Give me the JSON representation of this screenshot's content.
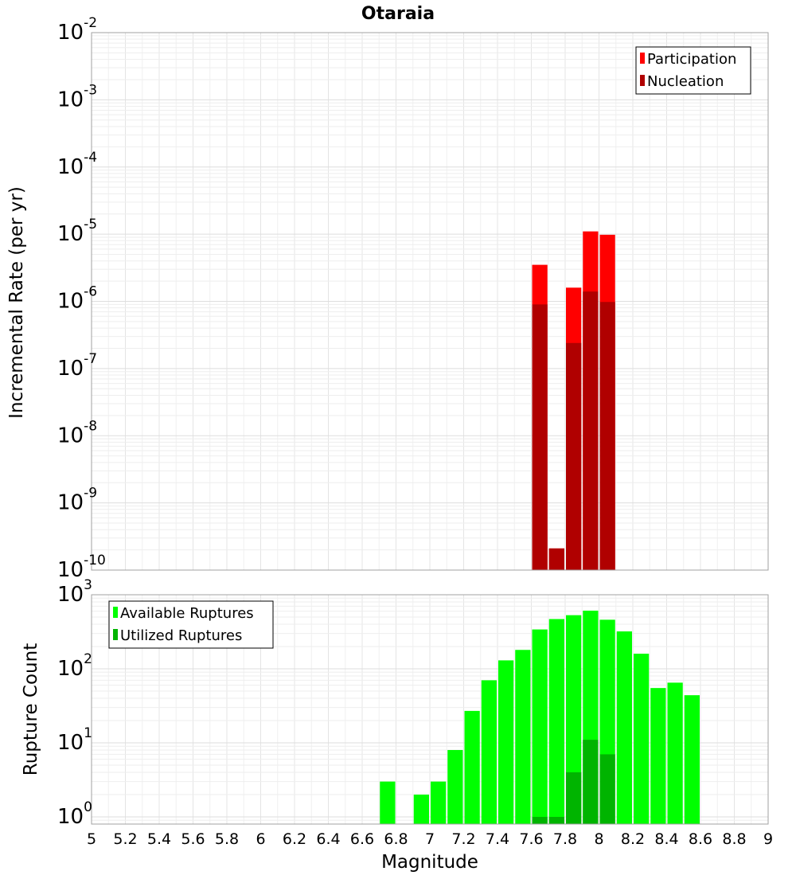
{
  "chart_data": [
    {
      "type": "bar",
      "title": "Otaraia",
      "ylabel": "Incremental Rate (per yr)",
      "xlabel": "",
      "yscale": "log",
      "ylim": [
        1e-10,
        0.01
      ],
      "xlim": [
        5,
        9
      ],
      "y_tick_exponents": [
        -2,
        -3,
        -4,
        -5,
        -6,
        -7,
        -8,
        -9,
        -10
      ],
      "legend": {
        "position": "top-right",
        "entries": [
          {
            "label": "Participation",
            "color": "#ff0000"
          },
          {
            "label": "Nucleation",
            "color": "#b00000"
          }
        ]
      },
      "bin_width": 0.1,
      "series": [
        {
          "name": "Participation",
          "color": "#ff0000",
          "x": [
            7.65,
            7.75,
            7.85,
            7.95,
            8.05
          ],
          "values": [
            3.5e-06,
            2.1e-10,
            1.6e-06,
            1.1e-05,
            9.8e-06
          ]
        },
        {
          "name": "Nucleation",
          "color": "#b00000",
          "x": [
            7.65,
            7.75,
            7.85,
            7.95,
            8.05
          ],
          "values": [
            9e-07,
            2.1e-10,
            2.4e-07,
            1.4e-06,
            9.8e-07
          ]
        }
      ]
    },
    {
      "type": "bar",
      "title": "",
      "ylabel": "Rupture Count",
      "xlabel": "Magnitude",
      "yscale": "log",
      "ylim": [
        0.8,
        1000
      ],
      "xlim": [
        5,
        9
      ],
      "y_tick_exponents": [
        3,
        2,
        1,
        0
      ],
      "x_ticks": [
        "5",
        "5.2",
        "5.4",
        "5.6",
        "5.8",
        "6",
        "6.2",
        "6.4",
        "6.6",
        "6.8",
        "7",
        "7.2",
        "7.4",
        "7.6",
        "7.8",
        "8",
        "8.2",
        "8.4",
        "8.6",
        "8.8",
        "9"
      ],
      "legend": {
        "position": "top-left",
        "entries": [
          {
            "label": "Available Ruptures",
            "color": "#00ff00"
          },
          {
            "label": "Utilized Ruptures",
            "color": "#00b400"
          }
        ]
      },
      "bin_width": 0.1,
      "series": [
        {
          "name": "Available Ruptures",
          "color": "#00ff00",
          "x": [
            6.75,
            6.95,
            7.05,
            7.15,
            7.25,
            7.35,
            7.45,
            7.55,
            7.65,
            7.75,
            7.85,
            7.95,
            8.05,
            8.15,
            8.25,
            8.35,
            8.45,
            8.55
          ],
          "values": [
            3,
            2,
            3,
            8,
            27,
            70,
            130,
            180,
            340,
            470,
            530,
            610,
            460,
            320,
            160,
            55,
            65,
            44
          ]
        },
        {
          "name": "Utilized Ruptures",
          "color": "#00b400",
          "x": [
            7.65,
            7.75,
            7.85,
            7.95,
            8.05
          ],
          "values": [
            1,
            1,
            4,
            11,
            7
          ]
        }
      ]
    }
  ]
}
